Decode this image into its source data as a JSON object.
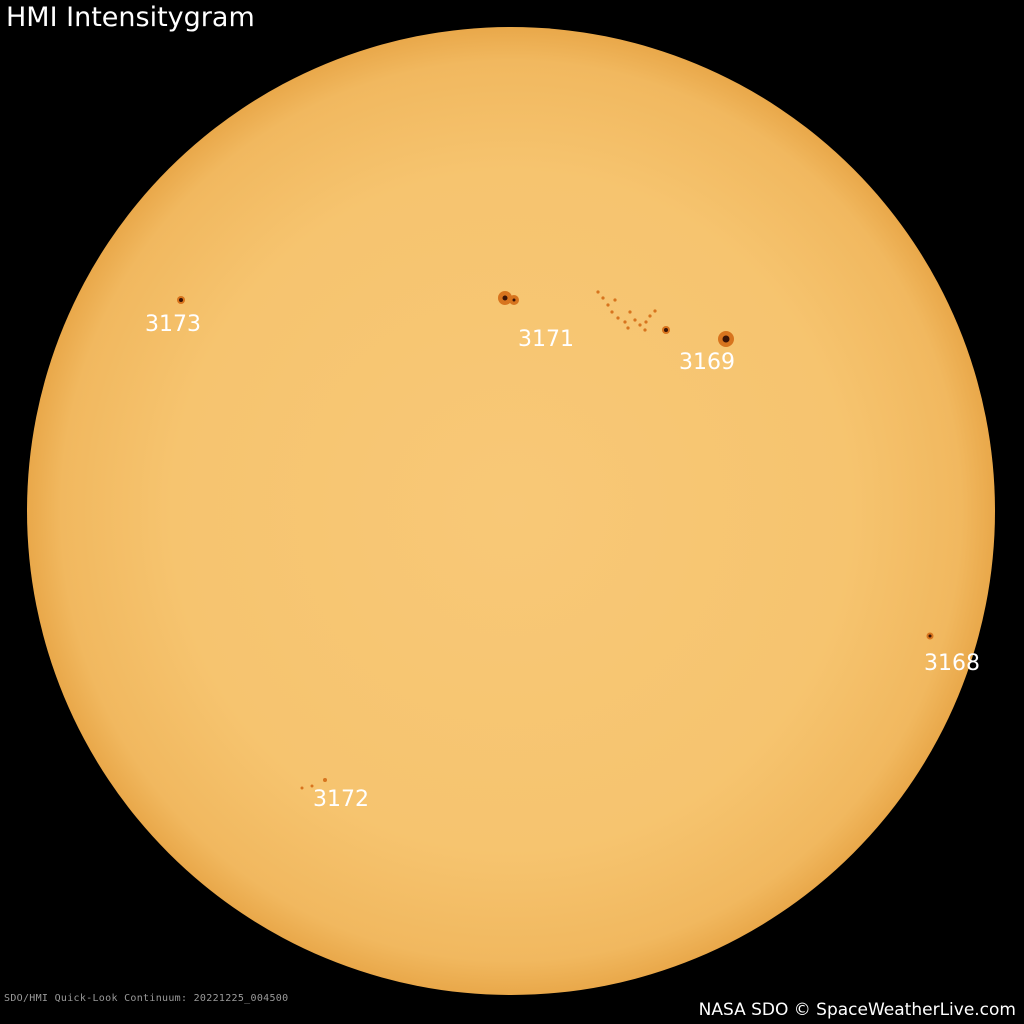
{
  "title": "HMI Intensitygram",
  "footer": {
    "left": "SDO/HMI Quick-Look Continuum: 20221225_004500",
    "right": "NASA SDO © SpaceWeatherLive.com"
  },
  "regions": [
    {
      "label": "3173"
    },
    {
      "label": "3171"
    },
    {
      "label": "3169"
    },
    {
      "label": "3168"
    },
    {
      "label": "3172"
    }
  ],
  "colors": {
    "background": "#000000",
    "disk_center": "#F8C877",
    "disk_limb": "#EDAE4E",
    "sunspot_penumbra": "#D7741E",
    "sunspot_umbra": "#3a1406"
  }
}
